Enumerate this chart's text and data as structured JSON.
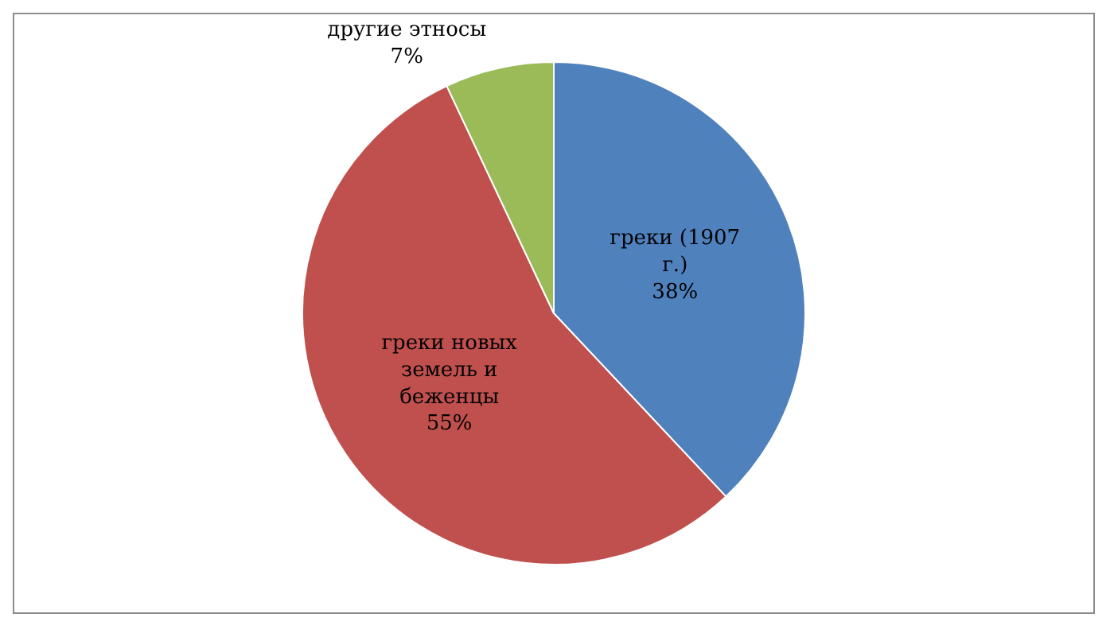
{
  "chart_data": {
    "type": "pie",
    "categories": [
      "греки (1907 г.)",
      "греки новых земель и беженцы",
      "другие этносы"
    ],
    "values": [
      38,
      55,
      7
    ],
    "value_labels": [
      "38%",
      "55%",
      "7%"
    ],
    "colors": [
      "#4f81bd",
      "#c0504d",
      "#9bbb59"
    ],
    "legend": false
  }
}
